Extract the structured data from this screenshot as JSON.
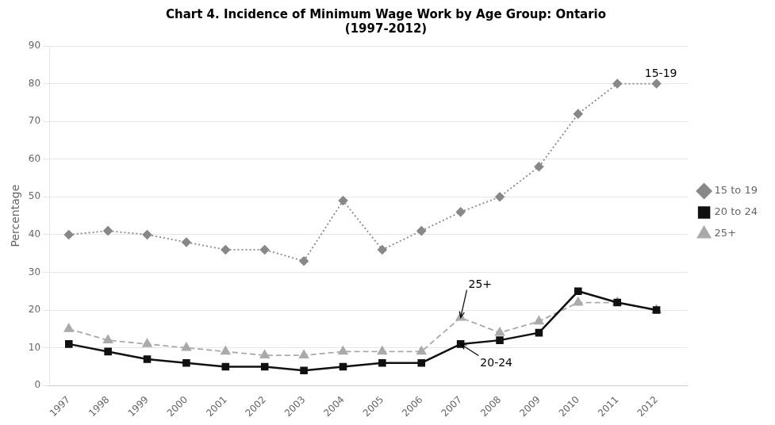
{
  "chart_data": {
    "type": "line",
    "title": "Chart 4. Incidence of Minimum Wage Work by Age Group: Ontario\n(1997-2012)",
    "ylabel": "Percentage",
    "x": [
      1997,
      1998,
      1999,
      2000,
      2001,
      2002,
      2003,
      2004,
      2005,
      2006,
      2007,
      2008,
      2009,
      2010,
      2011,
      2012
    ],
    "series": [
      {
        "name": "15 to 19",
        "color": "#888888",
        "marker": "diamond",
        "line_style": "dotted",
        "values": [
          40,
          41,
          40,
          38,
          36,
          36,
          33,
          49,
          36,
          41,
          46,
          50,
          58,
          72,
          80,
          80
        ]
      },
      {
        "name": "20 to 24",
        "color": "#111111",
        "marker": "square",
        "line_style": "solid",
        "values": [
          11,
          9,
          7,
          6,
          5,
          5,
          4,
          5,
          6,
          6,
          11,
          12,
          14,
          25,
          22,
          20
        ]
      },
      {
        "name": "25+",
        "color": "#aaaaaa",
        "marker": "triangle",
        "line_style": "dashed",
        "values": [
          15,
          12,
          11,
          10,
          9,
          8,
          8,
          9,
          9,
          9,
          18,
          14,
          17,
          22,
          22,
          20
        ]
      }
    ],
    "xlim": [
      1996.5,
      2012.8
    ],
    "xticks": [
      1997,
      1998,
      1999,
      2000,
      2001,
      2002,
      2003,
      2004,
      2005,
      2006,
      2007,
      2008,
      2009,
      2010,
      2011,
      2012
    ],
    "ylim": [
      0,
      90
    ],
    "yticks": [
      0,
      10,
      20,
      30,
      40,
      50,
      60,
      70,
      80,
      90
    ],
    "grid": "y",
    "legend": "right",
    "annotations": [
      {
        "text": "15-19",
        "xy": [
          2011.7,
          81
        ]
      },
      {
        "text": "25+",
        "xy": [
          2007,
          18
        ],
        "xytext": [
          2007.2,
          26
        ]
      },
      {
        "text": "20-24",
        "xy": [
          2007,
          11
        ],
        "xytext": [
          2007.5,
          5
        ]
      }
    ]
  }
}
